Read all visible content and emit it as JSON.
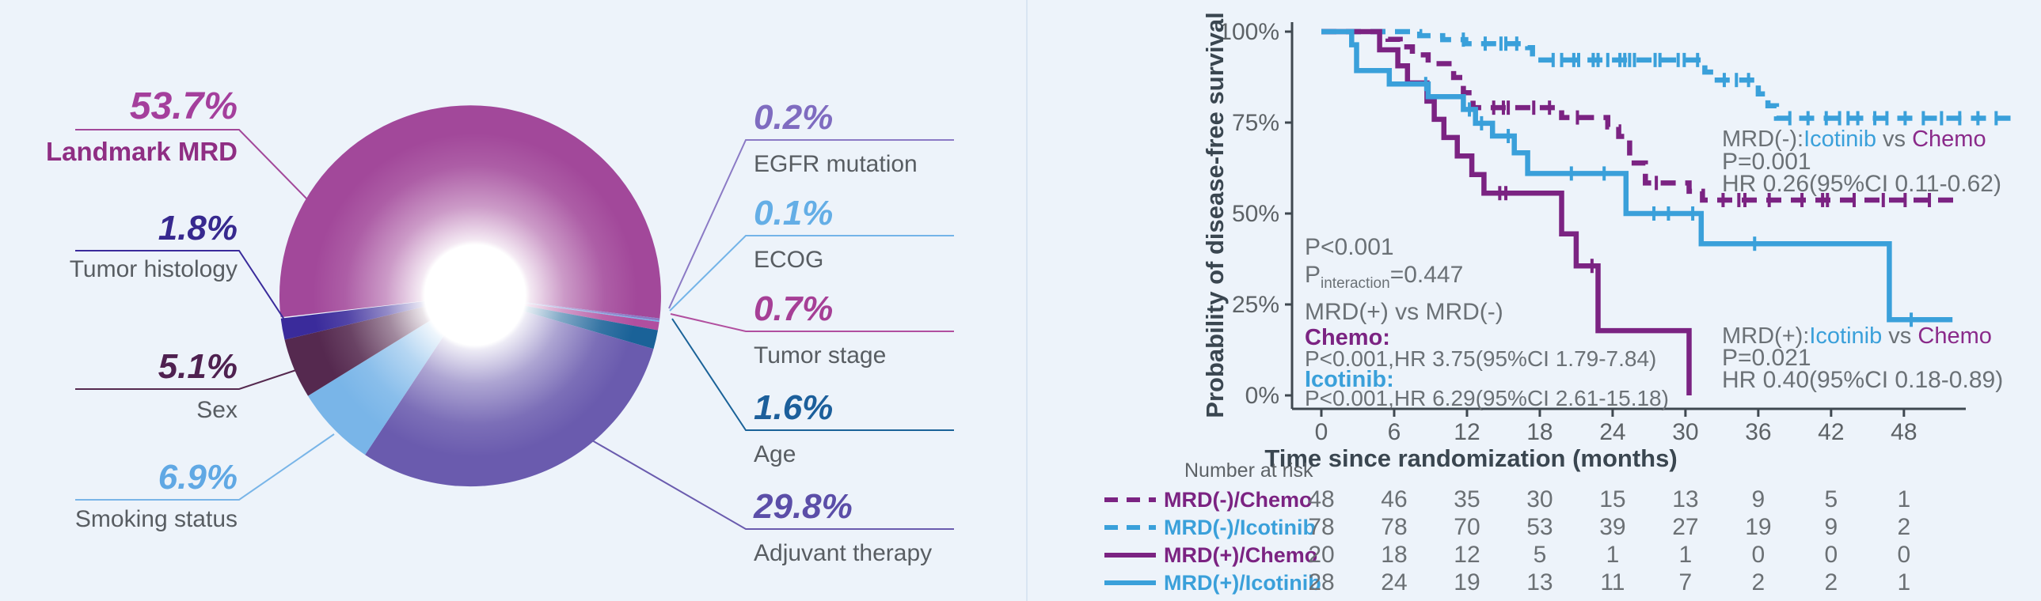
{
  "canvas": {
    "background": "#edf3fa",
    "divider_color": "#d9e5f2"
  },
  "chart_data": [
    {
      "type": "pie",
      "title": "",
      "donut": true,
      "start_angle_deg": 173.5,
      "slices": [
        {
          "label": "Landmark MRD",
          "value": 53.7,
          "display": "53.7%",
          "color": "#a2489a",
          "number_color": "#a43f9c",
          "label_color": "#8f2e83",
          "emphasis": true
        },
        {
          "label": "EGFR mutation",
          "value": 0.2,
          "display": "0.2%",
          "color": "#8b7ac5",
          "number_color": "#7f6cc0",
          "label_color": "#585d62",
          "emphasis": false
        },
        {
          "label": "ECOG",
          "value": 0.1,
          "display": "0.1%",
          "color": "#74b4e8",
          "number_color": "#64aee6",
          "label_color": "#585d62",
          "emphasis": false
        },
        {
          "label": "Tumor stage",
          "value": 0.7,
          "display": "0.7%",
          "color": "#b14f9f",
          "number_color": "#a63f96",
          "label_color": "#585d62",
          "emphasis": false
        },
        {
          "label": "Age",
          "value": 1.6,
          "display": "1.6%",
          "color": "#1a6298",
          "number_color": "#1c5f9b",
          "label_color": "#585d62",
          "emphasis": false
        },
        {
          "label": "Adjuvant therapy",
          "value": 29.8,
          "display": "29.8%",
          "color": "#6a5bae",
          "number_color": "#5b4ea8",
          "label_color": "#585d62",
          "emphasis": false
        },
        {
          "label": "Smoking status",
          "value": 6.9,
          "display": "6.9%",
          "color": "#79b5e8",
          "number_color": "#60a8e4",
          "label_color": "#585d62",
          "emphasis": false
        },
        {
          "label": "Sex",
          "value": 5.1,
          "display": "5.1%",
          "color": "#55294f",
          "number_color": "#4f2150",
          "label_color": "#585d62",
          "emphasis": false
        },
        {
          "label": "Tumor histology",
          "value": 1.8,
          "display": "1.8%",
          "color": "#3a2b9b",
          "number_color": "#37298f",
          "label_color": "#585d62",
          "emphasis": false
        }
      ]
    },
    {
      "type": "line",
      "subtype": "kaplan-meier",
      "ylabel": "Probability of disease-free survival",
      "xlabel": "Time since randomization (months)",
      "yticks": [
        {
          "p": 100,
          "label": "100%"
        },
        {
          "p": 75,
          "label": "75%"
        },
        {
          "p": 50,
          "label": "50%"
        },
        {
          "p": 25,
          "label": "25%"
        },
        {
          "p": 0,
          "label": "0%"
        }
      ],
      "xticks": [
        0,
        6,
        12,
        18,
        24,
        30,
        36,
        42,
        48
      ],
      "xlim": [
        0,
        52
      ],
      "risk_title": "Number at risk",
      "stats": {
        "p": "P<0.001",
        "p_int_prefix": "P",
        "p_int_sub": "interaction",
        "p_int_suffix": "=0.447",
        "comparison": "MRD(+) vs MRD(-)",
        "chemo_label": "Chemo:",
        "chemo_stats": "P<0.001,HR 3.75(95%CI 1.79-7.84)",
        "icotinib_label": "Icotinib:",
        "icotinib_stats": "P<0.001,HR 6.29(95%CI 2.61-15.18)"
      },
      "annotations": [
        {
          "prefix": "MRD(-):",
          "drug": "Icotinib",
          "middle": " vs ",
          "comparator": "Chemo",
          "line2": "P=0.001",
          "line3": "HR 0.26(95%CI 0.11-0.62)"
        },
        {
          "prefix": "MRD(+):",
          "drug": "Icotinib",
          "middle": " vs ",
          "comparator": "Chemo",
          "line2": "P=0.021",
          "line3": "HR 0.40(95%CI 0.18-0.89)"
        }
      ],
      "colors": {
        "chemo_purple": "#7b2382",
        "icotinib_blue": "#3aa0da"
      },
      "series": [
        {
          "name": "MRD(-)/Chemo",
          "color": "#7b2382",
          "style": "dashed",
          "steps": [
            [
              0,
              100
            ],
            [
              5.5,
              97.9
            ],
            [
              6.5,
              95.8
            ],
            [
              7.5,
              93.6
            ],
            [
              8.8,
              91.2
            ],
            [
              10.9,
              87.4
            ],
            [
              11.7,
              83.2
            ],
            [
              12.5,
              79.1
            ],
            [
              19.8,
              76.4
            ],
            [
              23.6,
              73.8
            ],
            [
              24.5,
              71.2
            ],
            [
              25.4,
              63.9
            ],
            [
              26.7,
              58.4
            ],
            [
              30.3,
              56.1
            ],
            [
              31.4,
              53.7
            ]
          ],
          "end": 52.5,
          "censors": [
            14.2,
            15.0,
            15.4,
            17.5,
            18.8,
            21.1,
            27.6,
            33.1,
            34.4,
            34.9,
            36.9,
            39.6,
            41.3,
            41.7,
            43.9,
            46.3,
            48.1,
            50.1
          ],
          "at_risk": [
            48,
            46,
            35,
            30,
            15,
            13,
            9,
            5,
            1
          ]
        },
        {
          "name": "MRD(-)/Icotinib",
          "color": "#3aa0da",
          "style": "dashed",
          "steps": [
            [
              0,
              100
            ],
            [
              8.1,
              98.9
            ],
            [
              10.0,
              97.8
            ],
            [
              11.9,
              96.7
            ],
            [
              17.0,
              95.6
            ],
            [
              17.4,
              93.9
            ],
            [
              17.8,
              92.2
            ],
            [
              31.6,
              88.9
            ],
            [
              32.3,
              86.7
            ],
            [
              36.0,
              82.9
            ],
            [
              36.8,
              79.6
            ],
            [
              37.5,
              76.2
            ]
          ],
          "end": 57.5,
          "censors": [
            11.7,
            13.5,
            14.8,
            15.2,
            16.1,
            19.1,
            19.8,
            20.8,
            21.2,
            22.4,
            22.8,
            23.6,
            24.6,
            25.0,
            25.4,
            25.8,
            27.5,
            27.9,
            29.4,
            29.9,
            31.0,
            33.2,
            34.2,
            35.2,
            38.6,
            40.1,
            41.6,
            42.7,
            43.4,
            44.2,
            45.6,
            46.6,
            48.1,
            49.6,
            51.1,
            52.6,
            54.1,
            55.6
          ],
          "at_risk": [
            78,
            78,
            70,
            53,
            39,
            27,
            19,
            9,
            2
          ]
        },
        {
          "name": "MRD(+)/Chemo",
          "color": "#7b2382",
          "style": "solid",
          "steps": [
            [
              0,
              100
            ],
            [
              4.8,
              95
            ],
            [
              6.3,
              90.6
            ],
            [
              7.1,
              85.9
            ],
            [
              8.7,
              80.9
            ],
            [
              9.3,
              75.9
            ],
            [
              10.1,
              70.9
            ],
            [
              11.2,
              65.8
            ],
            [
              12.4,
              60.7
            ],
            [
              13.4,
              55.6
            ],
            [
              19.8,
              44.4
            ],
            [
              21.0,
              35.6
            ],
            [
              22.8,
              17.8
            ],
            [
              30.3,
              0
            ]
          ],
          "end": 30.3,
          "censors": [
            14.7,
            15.2,
            22.3
          ],
          "at_risk": [
            20,
            18,
            12,
            5,
            1,
            1,
            0,
            0,
            0
          ]
        },
        {
          "name": "MRD(+)/Icotinib",
          "color": "#3aa0da",
          "style": "solid",
          "steps": [
            [
              0,
              100
            ],
            [
              2.5,
              96.4
            ],
            [
              2.9,
              89.3
            ],
            [
              5.6,
              85.6
            ],
            [
              8.8,
              82.1
            ],
            [
              11.7,
              78.6
            ],
            [
              12.7,
              74.8
            ],
            [
              14.1,
              71.3
            ],
            [
              15.9,
              66.7
            ],
            [
              17.0,
              61.0
            ],
            [
              25.1,
              50.0
            ],
            [
              31.3,
              41.7
            ],
            [
              46.8,
              20.8
            ]
          ],
          "end": 52.0,
          "censors": [
            8.6,
            12.2,
            13.2,
            15.4,
            20.6,
            23.3,
            27.4,
            28.6,
            30.6,
            35.7,
            48.6
          ],
          "at_risk": [
            28,
            24,
            19,
            13,
            11,
            7,
            2,
            2,
            1
          ]
        }
      ]
    }
  ]
}
